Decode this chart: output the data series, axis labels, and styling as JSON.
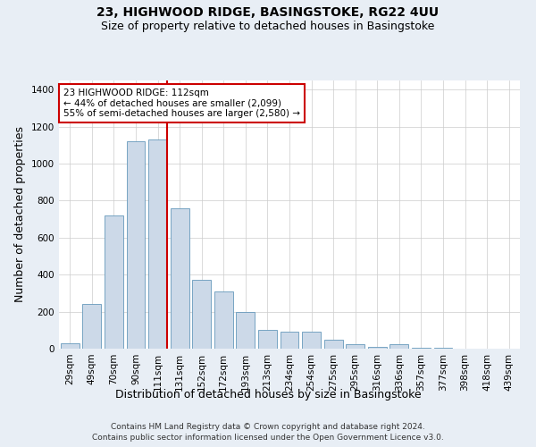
{
  "title_line1": "23, HIGHWOOD RIDGE, BASINGSTOKE, RG22 4UU",
  "title_line2": "Size of property relative to detached houses in Basingstoke",
  "xlabel": "Distribution of detached houses by size in Basingstoke",
  "ylabel": "Number of detached properties",
  "footer_line1": "Contains HM Land Registry data © Crown copyright and database right 2024.",
  "footer_line2": "Contains public sector information licensed under the Open Government Licence v3.0.",
  "annotation_line1": "23 HIGHWOOD RIDGE: 112sqm",
  "annotation_line2": "← 44% of detached houses are smaller (2,099)",
  "annotation_line3": "55% of semi-detached houses are larger (2,580) →",
  "bar_labels": [
    "29sqm",
    "49sqm",
    "70sqm",
    "90sqm",
    "111sqm",
    "131sqm",
    "152sqm",
    "172sqm",
    "193sqm",
    "213sqm",
    "234sqm",
    "254sqm",
    "275sqm",
    "295sqm",
    "316sqm",
    "336sqm",
    "357sqm",
    "377sqm",
    "398sqm",
    "418sqm",
    "439sqm"
  ],
  "bar_values": [
    30,
    240,
    720,
    1120,
    1130,
    760,
    370,
    310,
    200,
    100,
    90,
    90,
    50,
    25,
    10,
    25,
    5,
    3,
    2,
    1,
    1
  ],
  "bar_color": "#ccd9e8",
  "bar_edge_color": "#6699bb",
  "vline_x_index": 4,
  "vline_color": "#cc0000",
  "ylim": [
    0,
    1450
  ],
  "yticks": [
    0,
    200,
    400,
    600,
    800,
    1000,
    1200,
    1400
  ],
  "bg_color": "#e8eef5",
  "plot_bg_color": "#ffffff",
  "grid_color": "#cccccc",
  "annotation_box_color": "#cc0000",
  "title_fontsize": 10,
  "subtitle_fontsize": 9,
  "axis_label_fontsize": 9,
  "tick_fontsize": 7.5,
  "annotation_fontsize": 7.5,
  "footer_fontsize": 6.5
}
